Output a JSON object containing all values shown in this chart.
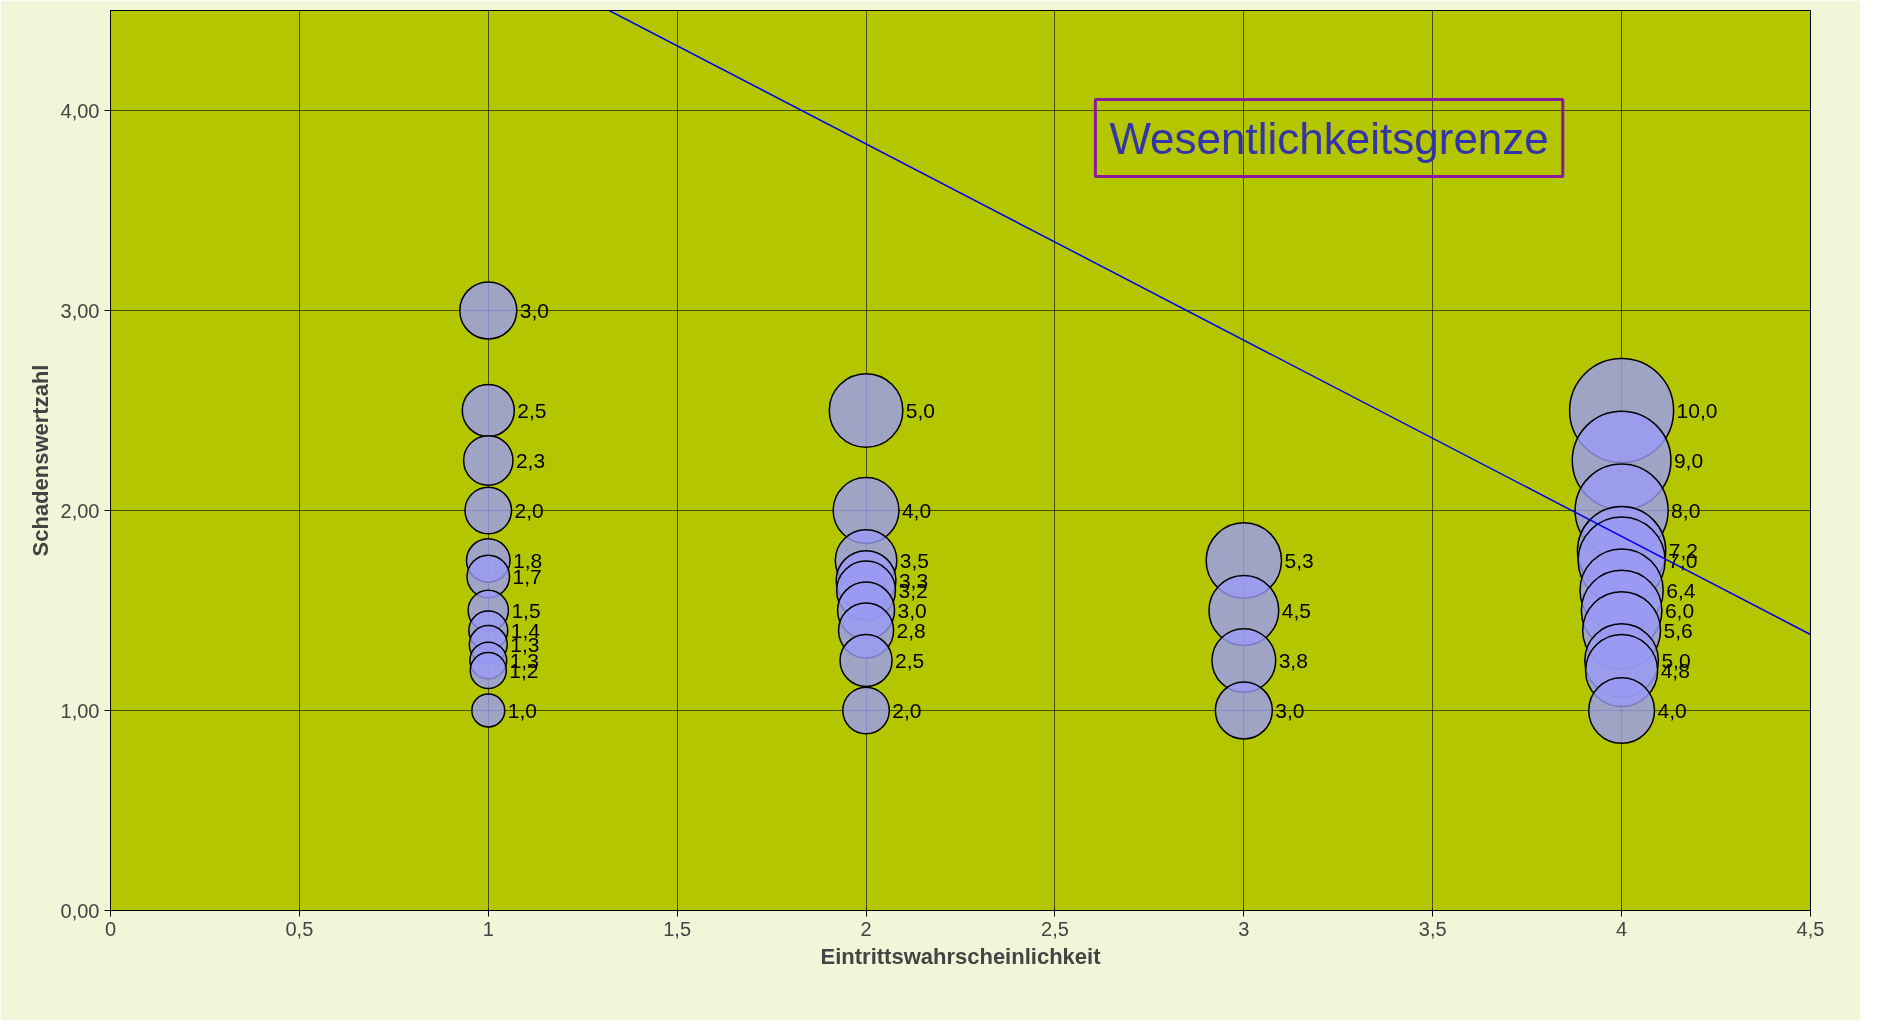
{
  "chart_data": {
    "type": "bubble",
    "xlabel": "Eintrittswahrscheinlichkeit",
    "ylabel": "Schadenswertzahl",
    "xlim": [
      0,
      4.5
    ],
    "ylim": [
      0,
      4.5
    ],
    "xticks": [
      0,
      {
        "value": 0.5,
        "label": "0,5"
      },
      1,
      {
        "value": 1.5,
        "label": "1,5"
      },
      2,
      {
        "value": 2.5,
        "label": "2,5"
      },
      3,
      {
        "value": 3.5,
        "label": "3,5"
      },
      4,
      {
        "value": 4.5,
        "label": "4,5"
      }
    ],
    "yticks": [
      {
        "value": 0,
        "label": "0,00"
      },
      {
        "value": 1,
        "label": "1,00"
      },
      {
        "value": 2,
        "label": "2,00"
      },
      {
        "value": 3,
        "label": "3,00"
      },
      {
        "value": 4,
        "label": "4,00"
      }
    ],
    "grid": true,
    "annotations": [
      "Wesentlichkeitsgrenze",
      {
        "text": "3,0",
        "x": 1,
        "y": 3.0
      },
      {
        "text": "2,5",
        "x": 1,
        "y": 2.5
      },
      {
        "text": "2,3",
        "x": 1,
        "y": 2.25
      },
      {
        "text": "2,0",
        "x": 1,
        "y": 2.0
      },
      {
        "text": "1,8",
        "x": 1,
        "y": 1.75
      },
      {
        "text": "1,7",
        "x": 1,
        "y": 1.67
      },
      {
        "text": "1,5",
        "x": 1,
        "y": 1.5
      },
      {
        "text": "1,4",
        "x": 1,
        "y": 1.4
      },
      {
        "text": "1,3",
        "x": 1,
        "y": 1.33
      },
      {
        "text": "1,3",
        "x": 1,
        "y": 1.25
      },
      {
        "text": "1,2",
        "x": 1,
        "y": 1.2
      },
      {
        "text": "1,0",
        "x": 1,
        "y": 1.0
      },
      {
        "text": "5,0",
        "x": 2,
        "y": 2.5
      },
      {
        "text": "4,0",
        "x": 2,
        "y": 2.0
      },
      {
        "text": "3,5",
        "x": 2,
        "y": 1.75
      },
      {
        "text": "3,3",
        "x": 2,
        "y": 1.65
      },
      {
        "text": "3,2",
        "x": 2,
        "y": 1.6
      },
      {
        "text": "3,0",
        "x": 2,
        "y": 1.5
      },
      {
        "text": "2,8",
        "x": 2,
        "y": 1.4
      },
      {
        "text": "2,5",
        "x": 2,
        "y": 1.25
      },
      {
        "text": "2,0",
        "x": 2,
        "y": 1.0
      },
      {
        "text": "5,3",
        "x": 3,
        "y": 1.75
      },
      {
        "text": "4,5",
        "x": 3,
        "y": 1.5
      },
      {
        "text": "3,8",
        "x": 3,
        "y": 1.25
      },
      {
        "text": "3,0",
        "x": 3,
        "y": 1.0
      },
      {
        "text": "10,0",
        "x": 4,
        "y": 2.5
      },
      {
        "text": "9,0",
        "x": 4,
        "y": 2.25
      },
      {
        "text": "8,0",
        "x": 4,
        "y": 2.0
      },
      {
        "text": "7,2",
        "x": 4,
        "y": 1.8
      },
      {
        "text": "7,0",
        "x": 4,
        "y": 1.75
      },
      {
        "text": "6,4",
        "x": 4,
        "y": 1.6
      },
      {
        "text": "6,0",
        "x": 4,
        "y": 1.5
      },
      {
        "text": "5,6",
        "x": 4,
        "y": 1.4
      },
      {
        "text": "5,0",
        "x": 4,
        "y": 1.25
      },
      {
        "text": "4,8",
        "x": 4,
        "y": 1.2
      },
      {
        "text": "4,0",
        "x": 4,
        "y": 1.0
      }
    ],
    "series": [
      {
        "type": "bubble",
        "color": "#9a9af5",
        "x": [
          1,
          1,
          1,
          1,
          1,
          1,
          1,
          1,
          1,
          1,
          1,
          1,
          2,
          2,
          2,
          2,
          2,
          2,
          2,
          2,
          2,
          3,
          3,
          3,
          3,
          4,
          4,
          4,
          4,
          4,
          4,
          4,
          4,
          4,
          4,
          4
        ],
        "values": [
          3.0,
          2.5,
          2.25,
          2.0,
          1.75,
          1.67,
          1.5,
          1.4,
          1.33,
          1.25,
          1.2,
          1.0,
          2.5,
          2.0,
          1.75,
          1.65,
          1.6,
          1.5,
          1.4,
          1.25,
          1.0,
          1.75,
          1.5,
          1.25,
          1.0,
          2.5,
          2.25,
          2.0,
          1.8,
          1.75,
          1.6,
          1.5,
          1.4,
          1.25,
          1.2,
          1.0
        ],
        "sizes": [
          0.3,
          0.25,
          0.225,
          0.2,
          0.175,
          0.167,
          0.15,
          0.14,
          0.133,
          0.125,
          0.12,
          0.1,
          0.5,
          0.4,
          0.35,
          0.33,
          0.32,
          0.3,
          0.28,
          0.25,
          0.2,
          0.525,
          0.45,
          0.375,
          0.3,
          1.0,
          0.9,
          0.8,
          0.72,
          0.7,
          0.64,
          0.6,
          0.56,
          0.5,
          0.48,
          0.4
        ]
      },
      {
        "type": "line",
        "color": "#0000ee",
        "x": [
          1.32,
          4.5
        ],
        "values": [
          4.5,
          1.38
        ]
      }
    ]
  }
}
